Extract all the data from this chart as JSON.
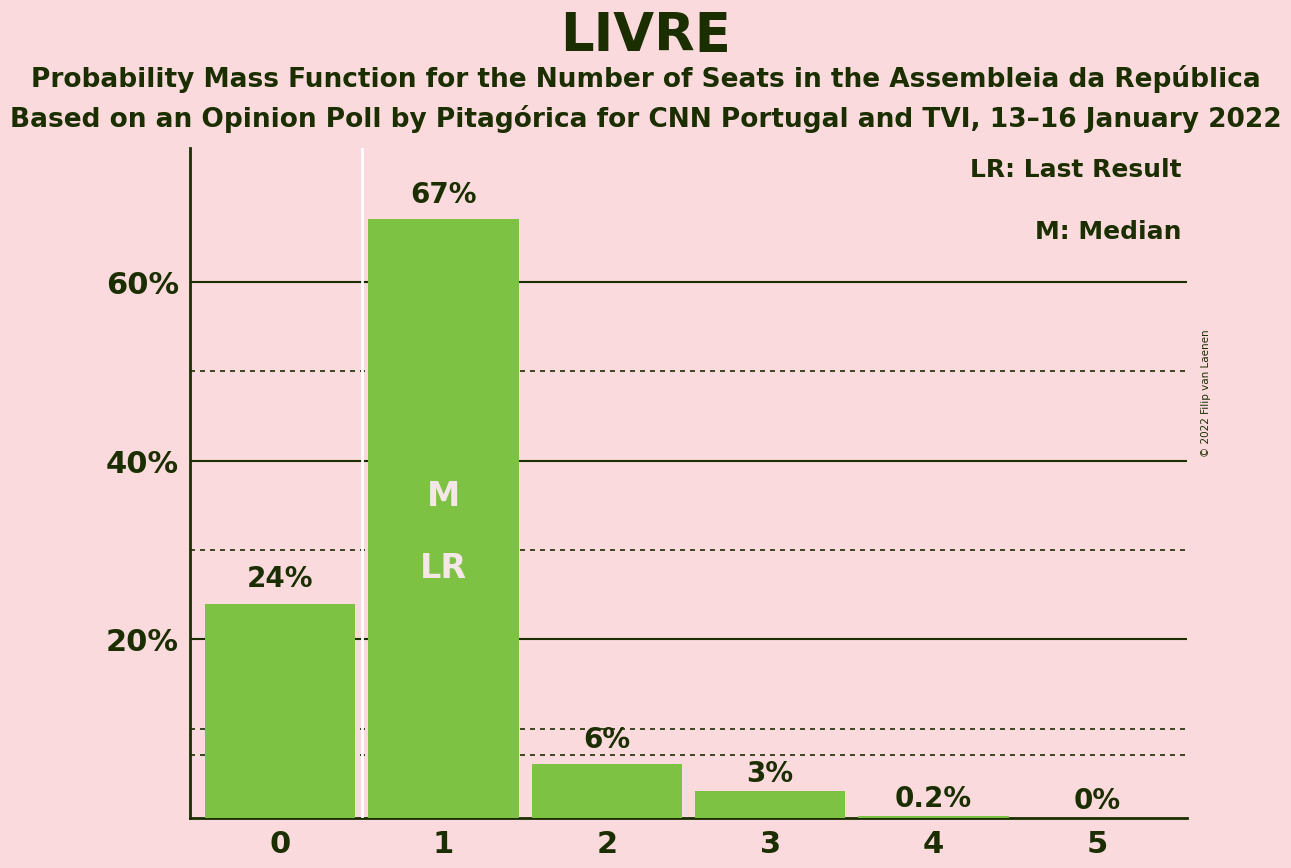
{
  "title": "LIVRE",
  "subtitle1": "Probability Mass Function for the Number of Seats in the Assembleia da República",
  "subtitle2": "Based on an Opinion Poll by Pitagórica for CNN Portugal and TVI, 13–16 January 2022",
  "copyright": "© 2022 Filip van Laenen",
  "categories": [
    0,
    1,
    2,
    3,
    4,
    5
  ],
  "values": [
    24,
    67,
    6,
    3,
    0.2,
    0
  ],
  "bar_color": "#7dc242",
  "background_color": "#fadadd",
  "text_color": "#1a2e00",
  "bar_labels": [
    "24%",
    "67%",
    "6%",
    "3%",
    "0.2%",
    "0%"
  ],
  "median_seat": 1,
  "last_result_seat": 1,
  "ylim": [
    0,
    75
  ],
  "solid_yticks": [
    20,
    40,
    60
  ],
  "dotted_yticks": [
    10,
    30,
    50,
    7
  ],
  "legend_lr": "LR: Last Result",
  "legend_m": "M: Median",
  "bar_label_fontsize": 20,
  "axis_tick_fontsize": 22,
  "title_fontsize": 38,
  "subtitle_fontsize": 19,
  "m_lr_fontsize": 24,
  "legend_fontsize": 18
}
